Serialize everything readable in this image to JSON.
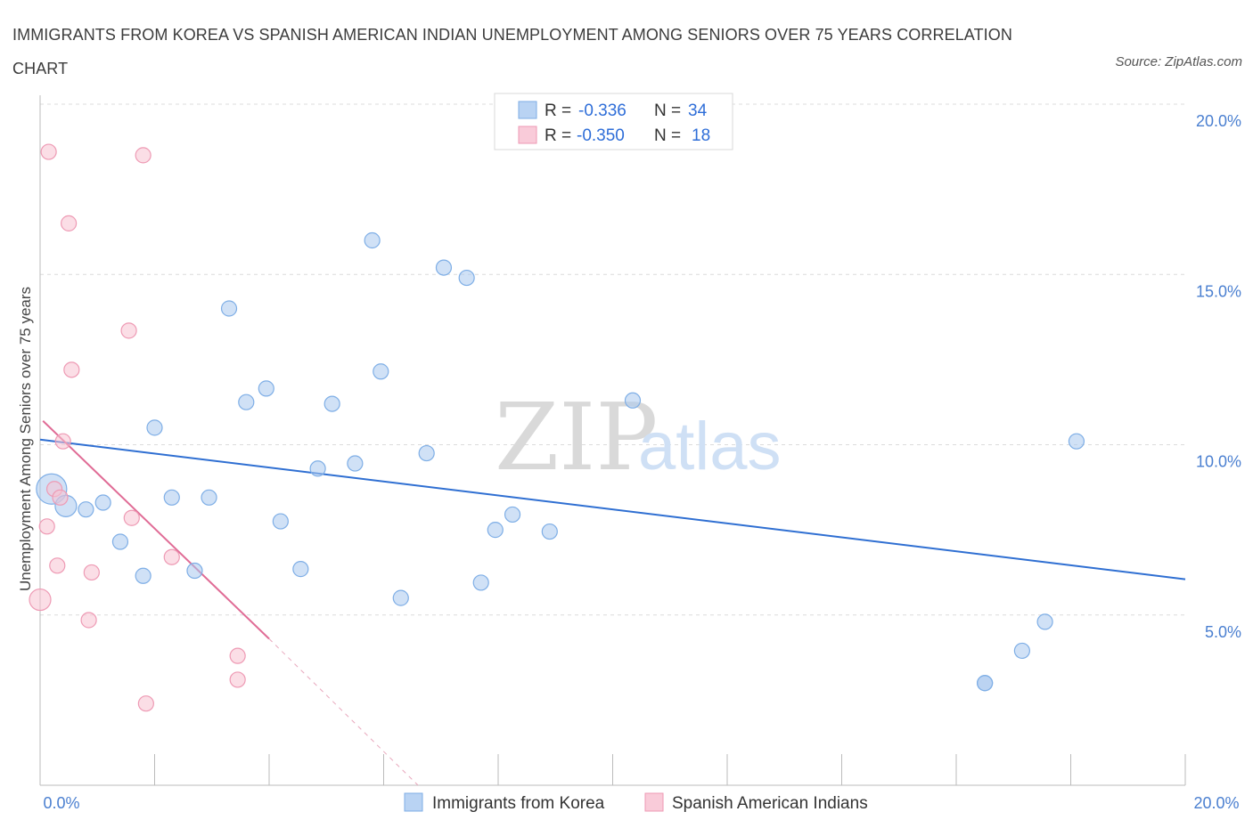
{
  "title": "IMMIGRANTS FROM KOREA VS SPANISH AMERICAN INDIAN UNEMPLOYMENT AMONG SENIORS OVER 75 YEARS CORRELATION CHART",
  "source": "Source: ZipAtlas.com",
  "watermark": {
    "zip": "ZIP",
    "atlas": "atlas"
  },
  "legend": {
    "r_label": "R =",
    "n_label": "N =",
    "rows": [
      {
        "r": "-0.336",
        "n": "34"
      },
      {
        "r": "-0.350",
        "n": "18"
      }
    ]
  },
  "chart_data": {
    "type": "scatter",
    "title": "IMMIGRANTS FROM KOREA VS SPANISH AMERICAN INDIAN UNEMPLOYMENT AMONG SENIORS OVER 75 YEARS CORRELATION CHART",
    "xlabel": "",
    "ylabel": "Unemployment Among Seniors over 75 years",
    "xlim": [
      0,
      20
    ],
    "ylim": [
      0,
      20
    ],
    "x_tick_labels": [
      "0.0%",
      "20.0%"
    ],
    "y_tick_labels": [
      "5.0%",
      "10.0%",
      "15.0%",
      "20.0%"
    ],
    "y_ticks": [
      5,
      10,
      15,
      20
    ],
    "grid": true,
    "series": [
      {
        "name": "Immigrants from Korea",
        "color": "#a9c8ef",
        "stroke": "#7eaee6",
        "trend_color": "#2f6fd2",
        "r": -0.336,
        "n": 34,
        "trend": {
          "x": [
            0,
            20
          ],
          "y": [
            10.15,
            6.05
          ]
        },
        "points": [
          {
            "x": 0.2,
            "y": 8.7,
            "s": 3
          },
          {
            "x": 0.45,
            "y": 8.2,
            "s": 2
          },
          {
            "x": 0.8,
            "y": 8.1,
            "s": 1
          },
          {
            "x": 1.1,
            "y": 8.3,
            "s": 1
          },
          {
            "x": 1.4,
            "y": 7.15,
            "s": 1
          },
          {
            "x": 1.8,
            "y": 6.15,
            "s": 1
          },
          {
            "x": 2.0,
            "y": 10.5,
            "s": 1
          },
          {
            "x": 2.3,
            "y": 8.45,
            "s": 1
          },
          {
            "x": 2.7,
            "y": 6.3,
            "s": 1
          },
          {
            "x": 2.95,
            "y": 8.45,
            "s": 1
          },
          {
            "x": 3.3,
            "y": 14.0,
            "s": 1
          },
          {
            "x": 3.6,
            "y": 11.25,
            "s": 1
          },
          {
            "x": 3.95,
            "y": 11.65,
            "s": 1
          },
          {
            "x": 4.2,
            "y": 7.75,
            "s": 1
          },
          {
            "x": 4.55,
            "y": 6.35,
            "s": 1
          },
          {
            "x": 4.85,
            "y": 9.3,
            "s": 1
          },
          {
            "x": 5.1,
            "y": 11.2,
            "s": 1
          },
          {
            "x": 5.5,
            "y": 9.45,
            "s": 1
          },
          {
            "x": 5.8,
            "y": 16.0,
            "s": 1
          },
          {
            "x": 5.95,
            "y": 12.15,
            "s": 1
          },
          {
            "x": 6.3,
            "y": 5.5,
            "s": 1
          },
          {
            "x": 6.75,
            "y": 9.75,
            "s": 1
          },
          {
            "x": 7.05,
            "y": 15.2,
            "s": 1
          },
          {
            "x": 7.45,
            "y": 14.9,
            "s": 1
          },
          {
            "x": 7.7,
            "y": 5.95,
            "s": 1
          },
          {
            "x": 7.95,
            "y": 7.5,
            "s": 1
          },
          {
            "x": 8.25,
            "y": 7.95,
            "s": 1
          },
          {
            "x": 8.9,
            "y": 7.45,
            "s": 1
          },
          {
            "x": 10.35,
            "y": 11.3,
            "s": 1
          },
          {
            "x": 16.5,
            "y": 3.0,
            "s": 1
          },
          {
            "x": 16.5,
            "y": 3.0,
            "s": 1
          },
          {
            "x": 17.15,
            "y": 3.95,
            "s": 1
          },
          {
            "x": 17.55,
            "y": 4.8,
            "s": 1
          },
          {
            "x": 18.1,
            "y": 10.1,
            "s": 1
          }
        ]
      },
      {
        "name": "Spanish American Indians",
        "color": "#f7c2d2",
        "stroke": "#ee9ab4",
        "trend_color": "#e06c96",
        "r": -0.35,
        "n": 18,
        "trend": {
          "x": [
            0.05,
            4.0
          ],
          "y": [
            10.7,
            4.3
          ]
        },
        "trend_dashed": {
          "x": [
            4.0,
            6.6
          ],
          "y": [
            4.3,
            0.0
          ]
        },
        "points": [
          {
            "x": 0.15,
            "y": 18.6,
            "s": 1
          },
          {
            "x": 0.5,
            "y": 16.5,
            "s": 1
          },
          {
            "x": 0.55,
            "y": 12.2,
            "s": 1
          },
          {
            "x": 0.4,
            "y": 10.1,
            "s": 1
          },
          {
            "x": 0.25,
            "y": 8.7,
            "s": 1
          },
          {
            "x": 0.35,
            "y": 8.45,
            "s": 1
          },
          {
            "x": 0.12,
            "y": 7.6,
            "s": 1
          },
          {
            "x": 0.3,
            "y": 6.45,
            "s": 1
          },
          {
            "x": 0.0,
            "y": 5.45,
            "s": 2
          },
          {
            "x": 0.85,
            "y": 4.85,
            "s": 1
          },
          {
            "x": 0.9,
            "y": 6.25,
            "s": 1
          },
          {
            "x": 1.55,
            "y": 13.35,
            "s": 1
          },
          {
            "x": 1.6,
            "y": 7.85,
            "s": 1
          },
          {
            "x": 1.8,
            "y": 18.5,
            "s": 1
          },
          {
            "x": 1.85,
            "y": 2.4,
            "s": 1
          },
          {
            "x": 2.3,
            "y": 6.7,
            "s": 1
          },
          {
            "x": 3.45,
            "y": 3.8,
            "s": 1
          },
          {
            "x": 3.45,
            "y": 3.1,
            "s": 1
          }
        ]
      }
    ]
  }
}
